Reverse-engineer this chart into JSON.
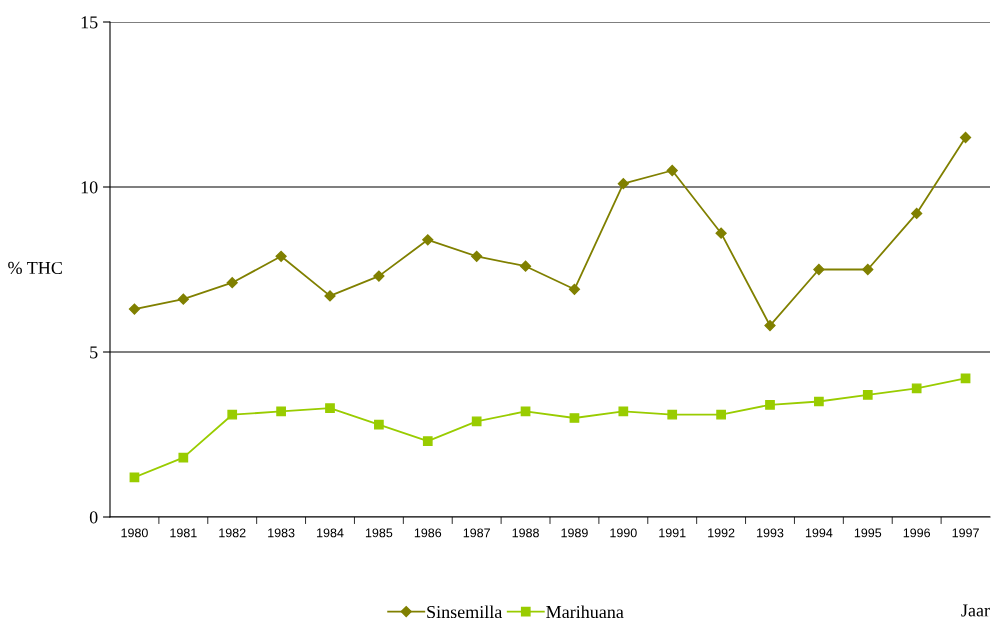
{
  "chart_data": {
    "type": "line",
    "xlabel": "Jaar",
    "ylabel": "% THC",
    "categories": [
      "1980",
      "1981",
      "1982",
      "1983",
      "1984",
      "1985",
      "1986",
      "1987",
      "1988",
      "1989",
      "1990",
      "1991",
      "1992",
      "1993",
      "1994",
      "1995",
      "1996",
      "1997"
    ],
    "series": [
      {
        "name": "Sinsemilla",
        "color": "#808000",
        "marker": "diamond",
        "values": [
          6.3,
          6.6,
          7.1,
          7.9,
          6.7,
          7.3,
          8.4,
          7.9,
          7.6,
          6.9,
          10.1,
          10.5,
          8.6,
          5.8,
          7.5,
          7.5,
          9.2,
          11.5
        ]
      },
      {
        "name": "Marihuana",
        "color": "#99cc00",
        "marker": "square",
        "values": [
          1.2,
          1.8,
          3.1,
          3.2,
          3.3,
          2.8,
          2.3,
          2.9,
          3.2,
          3.0,
          3.2,
          3.1,
          3.1,
          3.4,
          3.5,
          3.7,
          3.9,
          4.2
        ]
      }
    ],
    "ylim": [
      0,
      15
    ],
    "yticks": [
      0,
      5,
      10,
      15
    ],
    "grid": "y",
    "legend": "bottom"
  }
}
